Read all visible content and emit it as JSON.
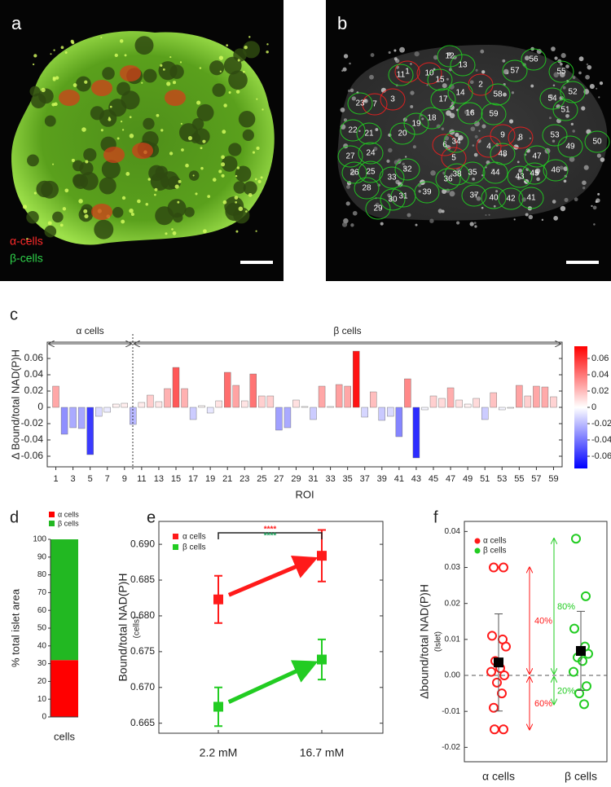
{
  "panels": [
    {
      "label": "a",
      "legend": [
        {
          "name": "α-cells",
          "color": "#ff2a2a"
        },
        {
          "name": "β-cells",
          "color": "#2fd24a"
        }
      ]
    },
    {
      "label": "b",
      "roi_labels": [
        "1",
        "2",
        "3",
        "4",
        "5",
        "6",
        "7",
        "8",
        "9",
        "10",
        "11",
        "12",
        "13",
        "14",
        "15",
        "16",
        "17",
        "18",
        "19",
        "20",
        "21",
        "22",
        "23",
        "24",
        "25",
        "26",
        "27",
        "28",
        "29",
        "30",
        "31",
        "32",
        "33",
        "34",
        "35",
        "36",
        "37",
        "38",
        "39",
        "40",
        "41",
        "42",
        "43",
        "44",
        "45",
        "46",
        "47",
        "48",
        "49",
        "50",
        "51",
        "52",
        "53",
        "54",
        "55",
        "56",
        "57",
        "58",
        "59"
      ]
    }
  ],
  "chart_data": [
    {
      "type": "bar",
      "panel_label": "c",
      "y_label": "Δ Bound/total NAD(P)H",
      "x_label": "ROI",
      "groups": [
        "α cells",
        "β cells"
      ],
      "x": [
        1,
        2,
        3,
        4,
        5,
        6,
        7,
        8,
        9,
        10,
        11,
        12,
        13,
        14,
        15,
        16,
        17,
        18,
        19,
        20,
        21,
        22,
        23,
        24,
        25,
        26,
        27,
        28,
        29,
        30,
        31,
        32,
        33,
        34,
        35,
        36,
        37,
        38,
        39,
        40,
        41,
        42,
        43,
        44,
        45,
        46,
        47,
        48,
        49,
        50,
        51,
        52,
        53,
        54,
        55,
        56,
        57,
        58,
        59
      ],
      "values": [
        0.026,
        -0.033,
        -0.025,
        -0.026,
        -0.058,
        -0.011,
        -0.006,
        0.004,
        0.005,
        -0.021,
        0.006,
        0.015,
        0.007,
        0.023,
        0.049,
        0.023,
        -0.015,
        0.002,
        -0.007,
        0.008,
        0.043,
        0.027,
        0.008,
        0.041,
        0.014,
        0.014,
        -0.028,
        -0.025,
        0.009,
        0.001,
        -0.015,
        0.026,
        0.001,
        0.028,
        0.026,
        0.069,
        -0.012,
        0.019,
        -0.016,
        -0.011,
        -0.036,
        0.035,
        -0.062,
        -0.003,
        0.014,
        0.011,
        0.024,
        0.009,
        0.004,
        0.011,
        -0.015,
        0.018,
        -0.003,
        -0.001,
        0.027,
        0.014,
        0.026,
        0.025,
        0.013
      ],
      "xlim": [
        0,
        60
      ],
      "xticks": [
        1,
        3,
        5,
        7,
        9,
        11,
        13,
        15,
        17,
        19,
        21,
        23,
        25,
        27,
        29,
        31,
        33,
        35,
        37,
        39,
        41,
        43,
        45,
        47,
        49,
        51,
        53,
        55,
        57,
        59
      ],
      "ylim": [
        -0.073,
        0.08
      ],
      "yticks": [
        -0.06,
        -0.04,
        -0.02,
        0,
        0.02,
        0.04,
        0.06
      ],
      "colormap": [
        "#0000ff",
        "#ffffff",
        "#ff0000"
      ],
      "clim": [
        -0.075,
        0.075
      ],
      "colorbar_ticks": [
        -0.06,
        -0.04,
        -0.02,
        0,
        0.02,
        0.04,
        0.06
      ]
    },
    {
      "type": "stacked_bar",
      "panel_label": "d",
      "y_label": "% total islet area",
      "categories": [
        "cells"
      ],
      "series": [
        {
          "name": "α cells",
          "color": "#ff0000",
          "values": [
            32
          ]
        },
        {
          "name": "β cells",
          "color": "#22b822",
          "values": [
            68
          ]
        }
      ],
      "ylim": [
        0,
        100
      ],
      "yticks": [
        0,
        10,
        20,
        30,
        40,
        50,
        60,
        70,
        80,
        90,
        100
      ]
    },
    {
      "type": "line",
      "panel_label": "e",
      "y_label": "Bound/total NAD(P)H",
      "y_sublabel": "(cells)",
      "categories": [
        "2.2 mM",
        "16.7 mM"
      ],
      "series": [
        {
          "name": "α cells",
          "color": "#ff1a1a",
          "values": [
            0.6823,
            0.6884
          ],
          "errors": [
            0.0033,
            0.0036
          ]
        },
        {
          "name": "β cells",
          "color": "#22cc22",
          "values": [
            0.6673,
            0.6739
          ],
          "errors": [
            0.0027,
            0.0028
          ]
        }
      ],
      "significance": [
        {
          "text": "****",
          "color": "#ff1a1a"
        },
        {
          "text": "****",
          "color": "#1aa05a"
        }
      ],
      "ylim": [
        0.6636,
        0.6932
      ],
      "yticks": [
        0.665,
        {
          "value": 0.67,
          "label": "0.670"
        },
        0.675,
        {
          "value": 0.68,
          "label": "0.680"
        },
        0.685,
        {
          "value": 0.69,
          "label": "0.690"
        }
      ]
    },
    {
      "type": "scatter",
      "panel_label": "f",
      "y_label": "Δbound/total NAD(P)H",
      "y_sublabel": "(Islet)",
      "categories": [
        "α cells",
        "β cells"
      ],
      "series": [
        {
          "name": "α cells",
          "color": "#ff1a1a",
          "values": [
            0.03,
            0.03,
            0.011,
            0.01,
            0.008,
            0.004,
            0.002,
            0.001,
            0.0,
            -0.002,
            -0.005,
            -0.009,
            -0.015,
            -0.015
          ],
          "mean": 0.0036,
          "sd": 0.0135,
          "percent_above": "40%",
          "percent_below": "60%"
        },
        {
          "name": "β cells",
          "color": "#22cc22",
          "values": [
            0.038,
            0.022,
            0.013,
            0.008,
            0.006,
            0.005,
            0.004,
            0.001,
            -0.003,
            -0.005,
            -0.008
          ],
          "mean": 0.0068,
          "sd": 0.011,
          "percent_above": "80%",
          "percent_below": "20%"
        }
      ],
      "ylim": [
        -0.024,
        0.0428
      ],
      "yticks": [
        -0.02,
        -0.01,
        {
          "value": 0,
          "label": "0.00"
        },
        0.01,
        0.02,
        0.03,
        0.04
      ]
    }
  ]
}
